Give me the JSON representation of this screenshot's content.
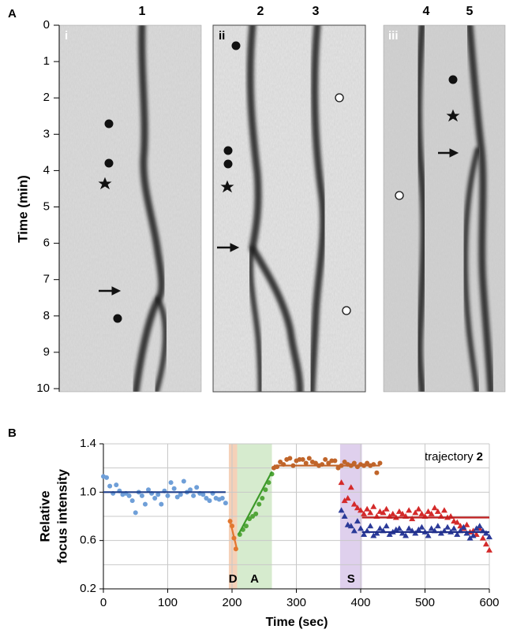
{
  "panel_a": {
    "label": "A",
    "y_label": "Time (min)",
    "yticks": [
      0,
      1,
      2,
      3,
      4,
      5,
      6,
      7,
      8,
      9,
      10
    ],
    "ylim": [
      0,
      10
    ],
    "panels": [
      {
        "label": "i",
        "tracks": [
          "1"
        ]
      },
      {
        "label": "ii",
        "tracks": [
          "2",
          "3"
        ]
      },
      {
        "label": "iii",
        "tracks": [
          "4",
          "5"
        ]
      }
    ]
  },
  "chart_data": {
    "type": "scatter",
    "label": "B",
    "x_label": "Time (sec)",
    "y_label": [
      "Relative",
      "focus intensity"
    ],
    "annotation": {
      "text": "trajectory",
      "bold": "2"
    },
    "xlim": [
      0,
      600
    ],
    "xticks": [
      0,
      100,
      200,
      300,
      400,
      500,
      600
    ],
    "ylim": [
      0.2,
      1.4
    ],
    "yticks": [
      0.2,
      0.6,
      {
        "value": 1,
        "label": "1.0"
      },
      1.4
    ],
    "yminor": [
      0.4,
      0.8,
      1.2
    ],
    "grid": true,
    "bands": [
      {
        "label": "D",
        "start": 195,
        "end": 208,
        "color": "#f3c9ac"
      },
      {
        "label": "A",
        "start": 208,
        "end": 262,
        "color": "#cfe8c6"
      },
      {
        "label": "S",
        "start": 368,
        "end": 402,
        "color": "#d9c8ea"
      }
    ],
    "series": [
      {
        "marker": "circle",
        "color": "#6f9fd8",
        "x": [
          0,
          5,
          10,
          15,
          20,
          25,
          30,
          35,
          40,
          45,
          50,
          55,
          60,
          65,
          70,
          75,
          80,
          85,
          90,
          95,
          100,
          105,
          110,
          115,
          120,
          125,
          130,
          135,
          140,
          145,
          150,
          155,
          160,
          165,
          170,
          175,
          180,
          185,
          190
        ],
        "values": [
          1.13,
          1.12,
          1.05,
          0.99,
          1.06,
          1.01,
          0.98,
          0.99,
          0.97,
          0.93,
          0.83,
          1.0,
          0.97,
          0.9,
          1.02,
          0.99,
          0.95,
          0.98,
          0.9,
          1.01,
          0.97,
          1.08,
          1.03,
          0.96,
          0.98,
          1.09,
          1.0,
          1.02,
          0.97,
          1.04,
          0.99,
          0.98,
          0.95,
          0.93,
          0.99,
          0.95,
          0.94,
          0.95,
          0.91
        ]
      },
      {
        "marker": "circle",
        "color": "#e2772f",
        "x": [
          197,
          200,
          203,
          206
        ],
        "values": [
          0.76,
          0.72,
          0.62,
          0.53
        ]
      },
      {
        "marker": "circle",
        "color": "#52a63a",
        "x": [
          212,
          217,
          222,
          227,
          232,
          237,
          242,
          247,
          252,
          257,
          262
        ],
        "values": [
          0.65,
          0.69,
          0.72,
          0.78,
          0.8,
          0.82,
          0.9,
          0.95,
          1.02,
          1.08,
          1.15
        ]
      },
      {
        "marker": "circle",
        "color": "#c0652a",
        "x": [
          265,
          270,
          275,
          280,
          285,
          290,
          295,
          300,
          305,
          310,
          315,
          320,
          325,
          330,
          335,
          340,
          345,
          350,
          355,
          360,
          365,
          370,
          375,
          380,
          385,
          390,
          395,
          400,
          405,
          410,
          415,
          420,
          425,
          430
        ],
        "values": [
          1.2,
          1.21,
          1.25,
          1.23,
          1.27,
          1.28,
          1.22,
          1.26,
          1.27,
          1.27,
          1.24,
          1.28,
          1.25,
          1.24,
          1.22,
          1.23,
          1.27,
          1.24,
          1.26,
          1.26,
          1.2,
          1.22,
          1.25,
          1.23,
          1.22,
          1.24,
          1.21,
          1.23,
          1.22,
          1.24,
          1.22,
          1.23,
          1.16,
          1.24
        ]
      },
      {
        "marker": "triangle",
        "color": "#d42a2a",
        "x": [
          370,
          375,
          380,
          385,
          390,
          395,
          400,
          405,
          410,
          415,
          420,
          425,
          430,
          435,
          440,
          445,
          450,
          455,
          460,
          465,
          470,
          475,
          480,
          485,
          490,
          495,
          500,
          505,
          510,
          515,
          520,
          525,
          530,
          535,
          540,
          545,
          550,
          555,
          560,
          565,
          570,
          575,
          580,
          585,
          590,
          595,
          600
        ],
        "values": [
          1.08,
          0.93,
          0.95,
          1.04,
          0.9,
          0.87,
          0.85,
          0.82,
          0.86,
          0.83,
          0.88,
          0.8,
          0.84,
          0.83,
          0.86,
          0.8,
          0.82,
          0.79,
          0.84,
          0.82,
          0.8,
          0.85,
          0.78,
          0.83,
          0.86,
          0.82,
          0.8,
          0.84,
          0.82,
          0.87,
          0.84,
          0.8,
          0.85,
          0.79,
          0.8,
          0.76,
          0.75,
          0.72,
          0.7,
          0.73,
          0.67,
          0.68,
          0.65,
          0.7,
          0.62,
          0.57,
          0.52
        ]
      },
      {
        "marker": "triangle",
        "color": "#2b3a98",
        "x": [
          370,
          375,
          380,
          385,
          390,
          395,
          400,
          405,
          410,
          415,
          420,
          425,
          430,
          435,
          440,
          445,
          450,
          455,
          460,
          465,
          470,
          475,
          480,
          485,
          490,
          495,
          500,
          505,
          510,
          515,
          520,
          525,
          530,
          535,
          540,
          545,
          550,
          555,
          560,
          565,
          570,
          575,
          580,
          585,
          590,
          595,
          600
        ],
        "values": [
          0.85,
          0.8,
          0.73,
          0.72,
          0.68,
          0.76,
          0.7,
          0.65,
          0.68,
          0.72,
          0.64,
          0.66,
          0.7,
          0.68,
          0.72,
          0.65,
          0.67,
          0.69,
          0.7,
          0.66,
          0.64,
          0.7,
          0.68,
          0.66,
          0.69,
          0.71,
          0.67,
          0.64,
          0.7,
          0.68,
          0.72,
          0.66,
          0.68,
          0.71,
          0.67,
          0.7,
          0.65,
          0.68,
          0.71,
          0.66,
          0.62,
          0.64,
          0.7,
          0.72,
          0.68,
          0.66,
          0.63
        ]
      }
    ],
    "fits": [
      {
        "color": "#1f3f8a",
        "x": [
          0,
          190
        ],
        "y": [
          1.0,
          1.0
        ]
      },
      {
        "color": "#e2772f",
        "x": [
          197,
          208
        ],
        "y": [
          0.76,
          0.52
        ]
      },
      {
        "color": "#3d9a2a",
        "x": [
          210,
          262
        ],
        "y": [
          0.65,
          1.17
        ]
      },
      {
        "color": "#c0652a",
        "x": [
          265,
          430
        ],
        "y": [
          1.22,
          1.22
        ]
      },
      {
        "color": "#c01f1f",
        "x": [
          402,
          600
        ],
        "y": [
          0.79,
          0.79
        ]
      },
      {
        "color": "#1f2e88",
        "x": [
          402,
          600
        ],
        "y": [
          0.67,
          0.67
        ]
      }
    ]
  }
}
